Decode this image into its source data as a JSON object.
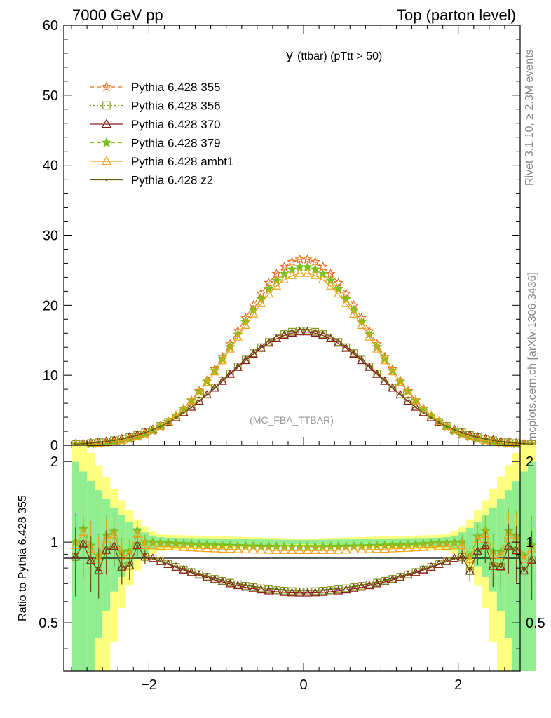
{
  "header": {
    "left": "7000 GeV pp",
    "right": "Top (parton level)"
  },
  "side_labels": {
    "rivet": "Rivet 3.1.10, ≥ 2.3M events",
    "mcplots": "mcplots.cern.ch [arXiv:1306.3436]"
  },
  "chart_data": [
    {
      "type": "line",
      "title_main": "y",
      "title_sub": "(ttbar)  (pTtt > 50)",
      "watermark": "(MC_FBA_TTBAR)",
      "ylim": [
        0,
        60
      ],
      "xlim": [
        -3.1,
        2.8
      ],
      "yticks": [
        0,
        10,
        20,
        30,
        40,
        50,
        60
      ],
      "ytick_labels": [
        "0",
        "10",
        "20",
        "30",
        "40",
        "50",
        "60"
      ],
      "legend_position": "top-left",
      "series": [
        {
          "name": "Pythia 6.428 355",
          "color": "#ee6a1c",
          "marker": "star-open",
          "dash": "dashed",
          "peak": 26.6,
          "sigma": 0.86
        },
        {
          "name": "Pythia 6.428 356",
          "color": "#7f9e1a",
          "marker": "square-open",
          "dash": "dotted",
          "peak": 16.4,
          "sigma": 0.98
        },
        {
          "name": "Pythia 6.428 370",
          "color": "#8b1a1a",
          "marker": "triangle-open",
          "dash": "solid",
          "peak": 16.2,
          "sigma": 0.98
        },
        {
          "name": "Pythia 6.428 379",
          "color": "#7cc01e",
          "marker": "star-filled",
          "dash": "dashed",
          "peak": 25.5,
          "sigma": 0.87
        },
        {
          "name": "Pythia 6.428 ambt1",
          "color": "#f2a21a",
          "marker": "triangle-open",
          "dash": "solid",
          "peak": 24.6,
          "sigma": 0.88
        },
        {
          "name": "Pythia 6.428 z2",
          "color": "#6b5a12",
          "marker": "dot",
          "dash": "solid",
          "peak": 16.6,
          "sigma": 0.97
        }
      ]
    },
    {
      "type": "line",
      "ylabel": "Ratio to Pythia 6.428 355",
      "ylim": [
        0.33,
        2.3
      ],
      "xlim": [
        -3.1,
        2.8
      ],
      "xticks": [
        -2,
        0,
        2
      ],
      "xtick_labels": [
        "−2",
        "0",
        "2"
      ],
      "yticks": [
        0.5,
        1,
        2
      ],
      "ytick_labels": [
        "0.5",
        "1",
        "2"
      ],
      "reference_line": 1,
      "band_colors": {
        "inner": "#90ee90",
        "outer": "#ffff7f"
      },
      "series_ratio": [
        {
          "name": "Pythia 6.428 356",
          "center": 0.655,
          "edge": 0.88
        },
        {
          "name": "Pythia 6.428 370",
          "center": 0.645,
          "edge": 0.88
        },
        {
          "name": "Pythia 6.428 379",
          "center": 0.96,
          "edge": 1.0
        },
        {
          "name": "Pythia 6.428 ambt1",
          "center": 0.93,
          "edge": 0.97
        },
        {
          "name": "Pythia 6.428 z2",
          "center": 0.66,
          "edge": 0.88
        }
      ]
    }
  ]
}
